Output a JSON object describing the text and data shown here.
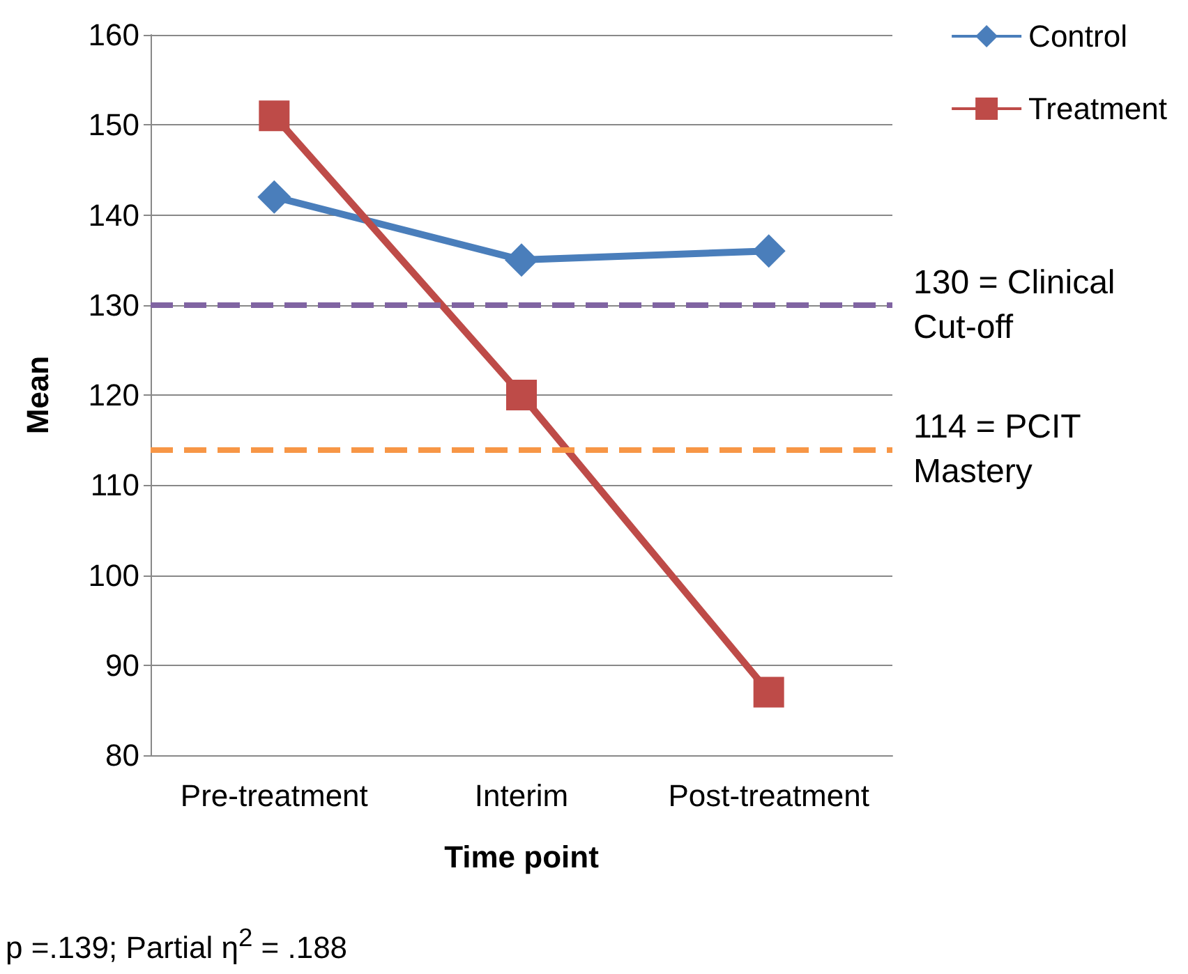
{
  "chart_data": {
    "type": "line",
    "xlabel": "Time point",
    "ylabel": "Mean",
    "categories": [
      "Pre-treatment",
      "Interim",
      "Post-treatment"
    ],
    "series": [
      {
        "name": "Control",
        "color": "#4a7ebb",
        "values": [
          142,
          135,
          136
        ],
        "marker": "diamond"
      },
      {
        "name": "Treatment",
        "color": "#be4b48",
        "values": [
          151,
          120,
          87
        ],
        "marker": "square"
      }
    ],
    "ylim": [
      80,
      160
    ],
    "yticks": [
      80,
      90,
      100,
      110,
      120,
      130,
      140,
      150,
      160
    ],
    "grid": "y",
    "legend": "top right",
    "ref_lines": [
      {
        "axis": "y",
        "value": 130,
        "label": "130 = Clinical Cut-off",
        "color": "#8064a2",
        "line_style": "dashed"
      },
      {
        "axis": "y",
        "value": 114,
        "label": "114 = PCIT Mastery",
        "color": "#f79646",
        "line_style": "dashed"
      }
    ],
    "annotations": [
      "p =.139; Partial η$^{2}$ = .188"
    ]
  }
}
